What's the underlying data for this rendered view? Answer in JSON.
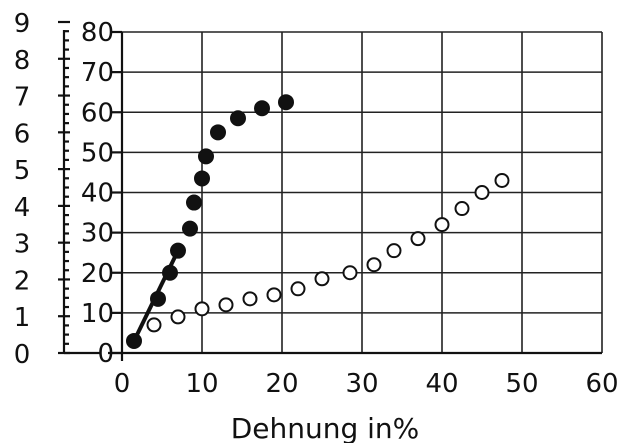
{
  "chart_data": {
    "type": "scatter",
    "xlabel": "Dehnung in%",
    "ylabel": "",
    "x_ticks": [
      "0",
      "10",
      "20",
      "30",
      "40",
      "50",
      "60"
    ],
    "y_ticks_inner": [
      "0",
      "10",
      "20",
      "30",
      "40",
      "50",
      "60",
      "70",
      "80"
    ],
    "y_ticks_outer": [
      "0",
      "1",
      "2",
      "3",
      "4",
      "5",
      "6",
      "7",
      "8",
      "9"
    ],
    "xlim": [
      0,
      60
    ],
    "ylim": [
      0,
      80
    ],
    "grid": true,
    "series": [
      {
        "marker": "filled-circle",
        "points": [
          [
            1.5,
            3
          ],
          [
            4.5,
            13.5
          ],
          [
            6,
            20
          ],
          [
            7,
            25.5
          ],
          [
            8.5,
            31
          ],
          [
            9,
            37.5
          ],
          [
            10,
            43.5
          ],
          [
            10.5,
            49
          ],
          [
            12,
            55
          ],
          [
            14.5,
            58.5
          ],
          [
            17.5,
            61
          ],
          [
            20.5,
            62.5
          ]
        ],
        "line": [
          [
            1.5,
            3
          ],
          [
            7,
            25.5
          ]
        ]
      },
      {
        "marker": "open-circle",
        "points": [
          [
            4,
            7
          ],
          [
            7,
            9
          ],
          [
            10,
            11
          ],
          [
            13,
            12
          ],
          [
            16,
            13.5
          ],
          [
            19,
            14.5
          ],
          [
            22,
            16
          ],
          [
            25,
            18.5
          ],
          [
            28.5,
            20
          ],
          [
            31.5,
            22
          ],
          [
            34,
            25.5
          ],
          [
            37,
            28.5
          ],
          [
            40,
            32
          ],
          [
            42.5,
            36
          ],
          [
            45,
            40
          ],
          [
            47.5,
            43
          ]
        ]
      }
    ]
  }
}
